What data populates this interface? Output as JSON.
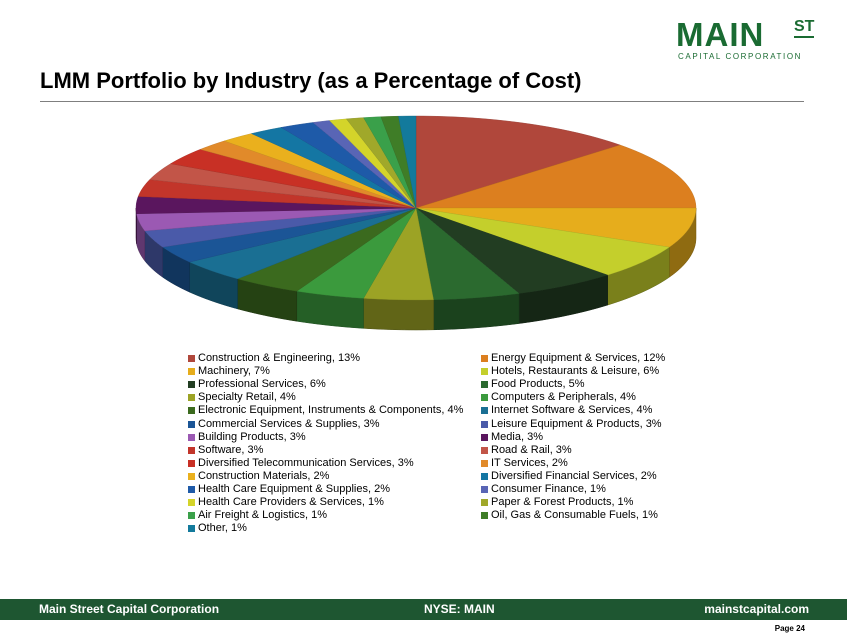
{
  "logo": {
    "main": "MAIN",
    "st": "ST",
    "sub": "CAPITAL CORPORATION"
  },
  "title": "LMM Portfolio by Industry (as a Percentage of Cost)",
  "footer": {
    "left": "Main Street Capital Corporation",
    "center": "NYSE: MAIN",
    "right": "mainstcapital.com"
  },
  "page_label": "Page  24",
  "chart_data": {
    "type": "pie",
    "style": "3d",
    "slices": [
      {
        "label": "Construction & Engineering, 13%",
        "value": 13,
        "color": "#b0473b"
      },
      {
        "label": "Energy Equipment & Services, 12%",
        "value": 12,
        "color": "#dc7f1f"
      },
      {
        "label": "Machinery, 7%",
        "value": 7,
        "color": "#e6ad1c"
      },
      {
        "label": "Hotels, Restaurants & Leisure, 6%",
        "value": 6,
        "color": "#c4cf2c"
      },
      {
        "label": "Professional Services, 6%",
        "value": 6,
        "color": "#223d22"
      },
      {
        "label": "Food Products, 5%",
        "value": 5,
        "color": "#2b6a2f"
      },
      {
        "label": "Specialty Retail, 4%",
        "value": 4,
        "color": "#9ca325"
      },
      {
        "label": "Computers & Peripherals, 4%",
        "value": 4,
        "color": "#3b9a3d"
      },
      {
        "label": "Electronic Equipment, Instruments & Components, 4%",
        "value": 4,
        "color": "#3b6a1e"
      },
      {
        "label": "Internet Software & Services, 4%",
        "value": 4,
        "color": "#1a6f93"
      },
      {
        "label": "Commercial Services & Supplies, 3%",
        "value": 3,
        "color": "#1b5596"
      },
      {
        "label": "Leisure Equipment & Products, 3%",
        "value": 3,
        "color": "#4a5aa9"
      },
      {
        "label": "Building Products, 3%",
        "value": 3,
        "color": "#9b59b3"
      },
      {
        "label": "Media, 3%",
        "value": 3,
        "color": "#5a165e"
      },
      {
        "label": "Software, 3%",
        "value": 3,
        "color": "#c2352a"
      },
      {
        "label": "Road & Rail, 3%",
        "value": 3,
        "color": "#c25548"
      },
      {
        "label": "Diversified Telecommunication Services, 3%",
        "value": 3,
        "color": "#c83025"
      },
      {
        "label": "IT Services, 2%",
        "value": 2,
        "color": "#e18a2a"
      },
      {
        "label": "Construction Materials, 2%",
        "value": 2,
        "color": "#eab01d"
      },
      {
        "label": "Diversified Financial Services, 2%",
        "value": 2,
        "color": "#1476a3"
      },
      {
        "label": "Health Care Equipment & Supplies, 2%",
        "value": 2,
        "color": "#1e5aa8"
      },
      {
        "label": "Consumer Finance, 1%",
        "value": 1,
        "color": "#5965b5"
      },
      {
        "label": "Health Care Providers & Services, 1%",
        "value": 1,
        "color": "#d4d42a"
      },
      {
        "label": "Paper & Forest Products, 1%",
        "value": 1,
        "color": "#a0a82a"
      },
      {
        "label": "Air Freight & Logistics, 1%",
        "value": 1,
        "color": "#3aa04a"
      },
      {
        "label": "Oil, Gas & Consumable Fuels, 1%",
        "value": 1,
        "color": "#3f7d27"
      },
      {
        "label": "Other, 1%",
        "value": 1,
        "color": "#137a9c"
      }
    ],
    "legend": "bottom, two columns"
  }
}
